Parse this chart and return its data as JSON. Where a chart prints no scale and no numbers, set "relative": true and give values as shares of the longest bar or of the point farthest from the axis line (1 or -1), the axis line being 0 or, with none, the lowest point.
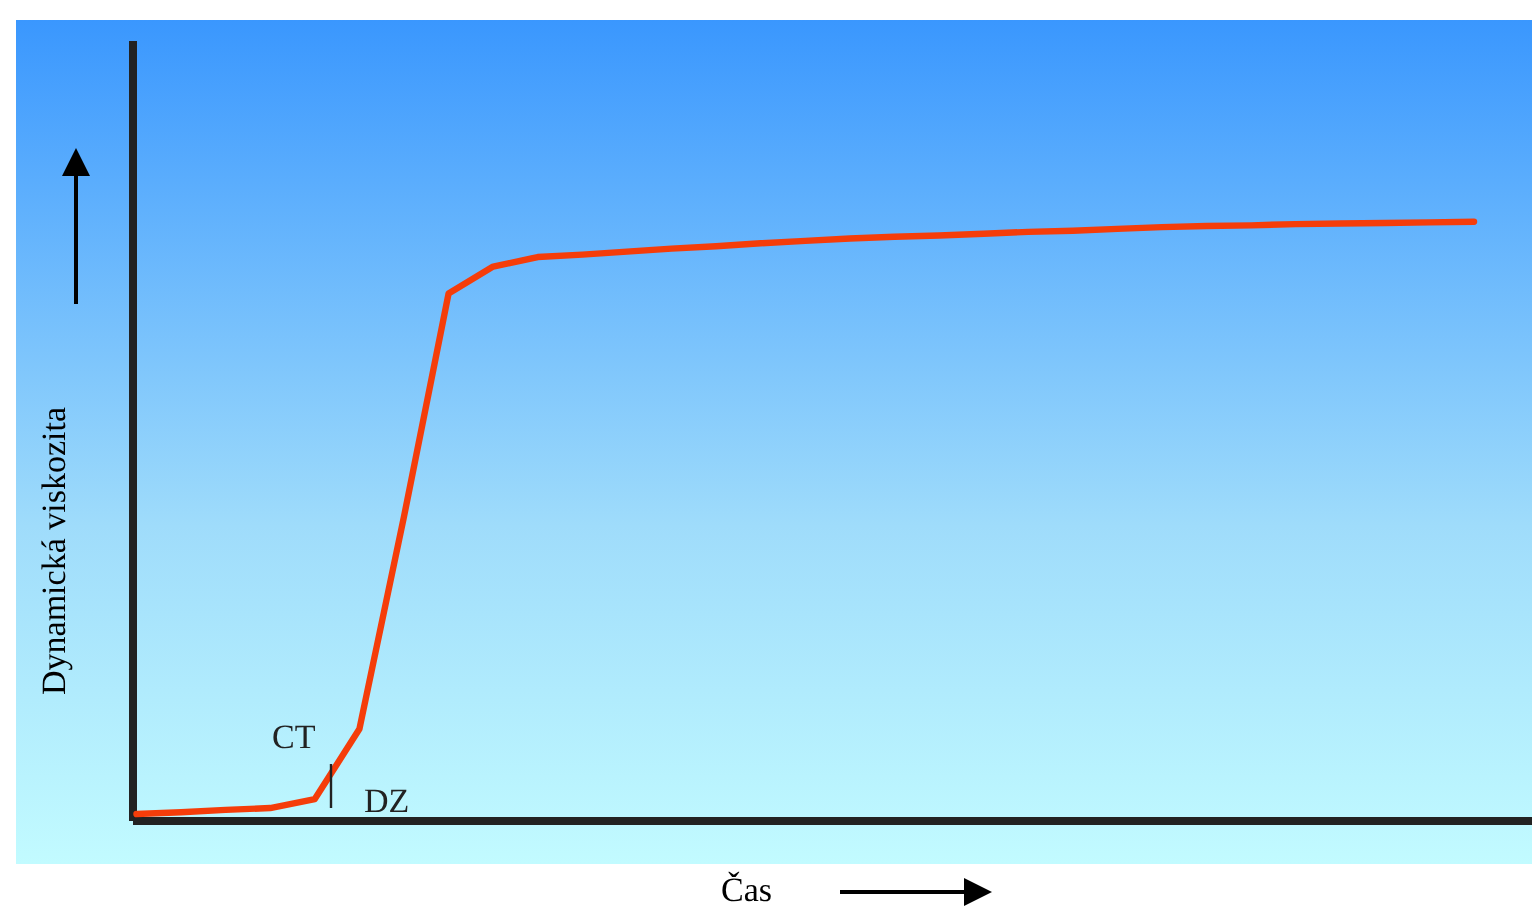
{
  "chart_data": {
    "type": "line",
    "relative": true,
    "xlabel": "Čas",
    "ylabel": "Dynamická viskozita",
    "annotations": [
      "CT",
      "DZ"
    ],
    "categories": [
      null,
      null,
      null,
      null,
      null,
      null,
      null,
      null,
      null,
      null,
      null,
      null,
      null,
      null,
      null,
      null,
      null,
      null,
      null,
      null,
      null,
      null,
      null,
      null,
      null,
      null,
      null,
      null,
      null,
      null,
      null
    ],
    "series": [
      {
        "color": "#f53d0a",
        "values": [
          0.01,
          0.013,
          0.017,
          0.02,
          0.035,
          0.152,
          0.507,
          0.88,
          0.925,
          0.941,
          0.945,
          0.95,
          0.955,
          0.959,
          0.964,
          0.968,
          0.972,
          0.975,
          0.977,
          0.98,
          0.983,
          0.985,
          0.988,
          0.991,
          0.993,
          0.994,
          0.996,
          0.997,
          0.998,
          0.999,
          1.0
        ]
      }
    ],
    "marker": "none",
    "line_style": "solid",
    "grid": false
  }
}
